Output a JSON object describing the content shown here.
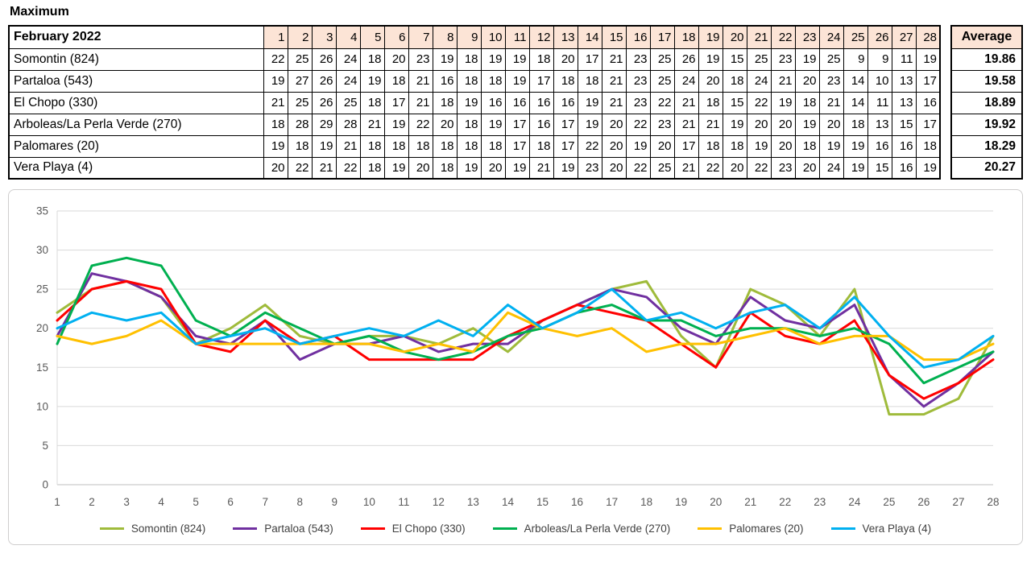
{
  "title": "Maximum",
  "table": {
    "month_label": "February 2022",
    "average_label": "Average",
    "days": [
      1,
      2,
      3,
      4,
      5,
      6,
      7,
      8,
      9,
      10,
      11,
      12,
      13,
      14,
      15,
      16,
      17,
      18,
      19,
      20,
      21,
      22,
      23,
      24,
      25,
      26,
      27,
      28
    ],
    "rows": [
      {
        "name": "Somontin (824)",
        "values": [
          22,
          25,
          26,
          24,
          18,
          20,
          23,
          19,
          18,
          19,
          19,
          18,
          20,
          17,
          21,
          23,
          25,
          26,
          19,
          15,
          25,
          23,
          19,
          25,
          9,
          9,
          11,
          19
        ],
        "average": "19.86"
      },
      {
        "name": "Partaloa (543)",
        "values": [
          19,
          27,
          26,
          24,
          19,
          18,
          21,
          16,
          18,
          18,
          19,
          17,
          18,
          18,
          21,
          23,
          25,
          24,
          20,
          18,
          24,
          21,
          20,
          23,
          14,
          10,
          13,
          17
        ],
        "average": "19.58"
      },
      {
        "name": "El Chopo (330)",
        "values": [
          21,
          25,
          26,
          25,
          18,
          17,
          21,
          18,
          19,
          16,
          16,
          16,
          16,
          19,
          21,
          23,
          22,
          21,
          18,
          15,
          22,
          19,
          18,
          21,
          14,
          11,
          13,
          16
        ],
        "average": "18.89"
      },
      {
        "name": "Arboleas/La Perla Verde (270)",
        "values": [
          18,
          28,
          29,
          28,
          21,
          19,
          22,
          20,
          18,
          19,
          17,
          16,
          17,
          19,
          20,
          22,
          23,
          21,
          21,
          19,
          20,
          20,
          19,
          20,
          18,
          13,
          15,
          17
        ],
        "average": "19.92"
      },
      {
        "name": "Palomares (20)",
        "values": [
          19,
          18,
          19,
          21,
          18,
          18,
          18,
          18,
          18,
          18,
          17,
          18,
          17,
          22,
          20,
          19,
          20,
          17,
          18,
          18,
          19,
          20,
          18,
          19,
          19,
          16,
          16,
          18
        ],
        "average": "18.29"
      },
      {
        "name": "Vera Playa (4)",
        "values": [
          20,
          22,
          21,
          22,
          18,
          19,
          20,
          18,
          19,
          20,
          19,
          21,
          19,
          23,
          20,
          22,
          25,
          21,
          22,
          20,
          22,
          23,
          20,
          24,
          19,
          15,
          16,
          19
        ],
        "average": "20.27"
      }
    ]
  },
  "chart_data": {
    "type": "line",
    "x": [
      1,
      2,
      3,
      4,
      5,
      6,
      7,
      8,
      9,
      10,
      11,
      12,
      13,
      14,
      15,
      16,
      17,
      18,
      19,
      20,
      21,
      22,
      23,
      24,
      25,
      26,
      27,
      28
    ],
    "series": [
      {
        "name": "Somontin (824)",
        "color": "#9FBB3B",
        "values": [
          22,
          25,
          26,
          24,
          18,
          20,
          23,
          19,
          18,
          19,
          19,
          18,
          20,
          17,
          21,
          23,
          25,
          26,
          19,
          15,
          25,
          23,
          19,
          25,
          9,
          9,
          11,
          19
        ]
      },
      {
        "name": "Partaloa (543)",
        "color": "#7030A0",
        "values": [
          19,
          27,
          26,
          24,
          19,
          18,
          21,
          16,
          18,
          18,
          19,
          17,
          18,
          18,
          21,
          23,
          25,
          24,
          20,
          18,
          24,
          21,
          20,
          23,
          14,
          10,
          13,
          17
        ]
      },
      {
        "name": "El Chopo (330)",
        "color": "#FF0000",
        "values": [
          21,
          25,
          26,
          25,
          18,
          17,
          21,
          18,
          19,
          16,
          16,
          16,
          16,
          19,
          21,
          23,
          22,
          21,
          18,
          15,
          22,
          19,
          18,
          21,
          14,
          11,
          13,
          16
        ]
      },
      {
        "name": "Arboleas/La Perla Verde (270)",
        "color": "#00B050",
        "values": [
          18,
          28,
          29,
          28,
          21,
          19,
          22,
          20,
          18,
          19,
          17,
          16,
          17,
          19,
          20,
          22,
          23,
          21,
          21,
          19,
          20,
          20,
          19,
          20,
          18,
          13,
          15,
          17
        ]
      },
      {
        "name": "Palomares (20)",
        "color": "#FFC000",
        "values": [
          19,
          18,
          19,
          21,
          18,
          18,
          18,
          18,
          18,
          18,
          17,
          18,
          17,
          22,
          20,
          19,
          20,
          17,
          18,
          18,
          19,
          20,
          18,
          19,
          19,
          16,
          16,
          18
        ]
      },
      {
        "name": "Vera Playa (4)",
        "color": "#00B0F0",
        "values": [
          20,
          22,
          21,
          22,
          18,
          19,
          20,
          18,
          19,
          20,
          19,
          21,
          19,
          23,
          20,
          22,
          25,
          21,
          22,
          20,
          22,
          23,
          20,
          24,
          19,
          15,
          16,
          19
        ]
      }
    ],
    "title": "Maximum",
    "xlabel": "",
    "ylabel": "",
    "ylim": [
      0,
      35
    ],
    "yticks": [
      0,
      5,
      10,
      15,
      20,
      25,
      30,
      35
    ],
    "grid": true,
    "legend_position": "bottom"
  },
  "colors": {
    "header_fill": "#FCE4D6",
    "grid_line": "#D9D9D9",
    "axis_line": "#BFBFBF",
    "axis_text": "#595959"
  }
}
